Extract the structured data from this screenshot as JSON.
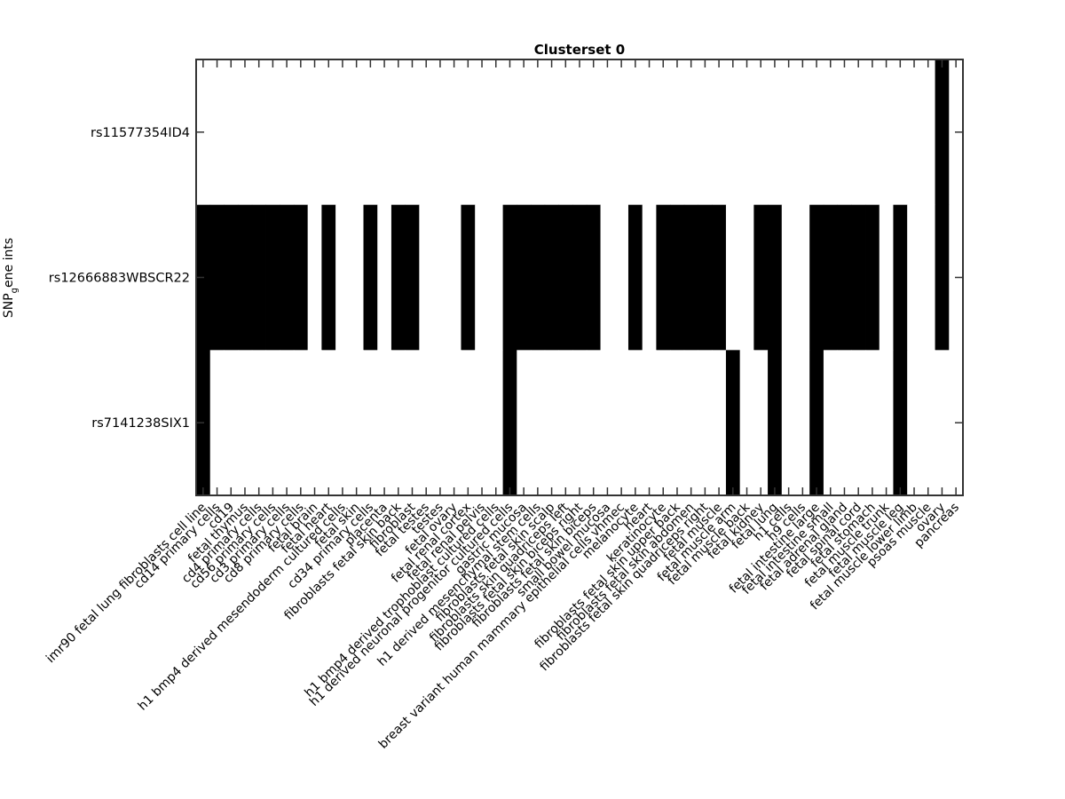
{
  "chart_data": {
    "type": "heatmap",
    "title": "Clusterset 0",
    "ylabel": {
      "main": "SNP",
      "subscript": "g",
      "rest": "ene ints"
    },
    "xlabel": "",
    "grid": false,
    "colors": {
      "on": "#000000",
      "off": "#ffffff",
      "frame": "#333333"
    },
    "rows": [
      "rs11577354ID4",
      "rs12666883WBSCR22",
      "rs7141238SIX1"
    ],
    "columns": [
      "imr90 fetal lung fibroblasts cell line",
      "cd14 primary cells",
      "cd19",
      "fetal thymus",
      "cd4 primary cells",
      "cd56 primary cells",
      "cd3 primary cells",
      "cd8 primary cells",
      "fetal brain",
      "fetal heart",
      "h1 bmp4 derived mesendoderm cultured cells",
      "fetal skin",
      "cd34 primary cells",
      "placenta",
      "fibroblasts fetal skin back",
      "fibroblast",
      "fetal testes",
      "testes",
      "fetal ovary",
      "fetal renal cortex",
      "fetal renal pelvis",
      "h1 bmp4 derived trophoblast cultured cells",
      "h1 derived neuronal progenitor cultured cells",
      "gastric mucosa",
      "h1 derived mesenchymal stem cells",
      "fibroblasts fetal skin scalp",
      "fibroblasts skin quadriceps left",
      "fibroblasts fetal skin biceps right",
      "fibroblasts fetal skin biceps",
      "small bowel mucosa",
      "breast variant human mammary epithelial cells vhmec",
      "melanocyte",
      "heart",
      "keratinocyte",
      "fibroblasts fetal skin upper back",
      "fibroblasts fetal skin abdomen",
      "fibroblasts fetal skin quadriceps right",
      "fetal muscle",
      "fetal muscle arm",
      "fetal muscle back",
      "fetal kidney",
      "fetal lung",
      "h1 cells",
      "h9 cells",
      "fetal intestine large",
      "fetal intestine small",
      "fetal adrenal gland",
      "fetal spinal cord",
      "fetal stomach",
      "fetal muscle trunk",
      "fetal muscle leg",
      "fetal muscle lower limb",
      "psoas muscle",
      "ovary",
      "pancreas"
    ],
    "values": [
      [
        0,
        0,
        0,
        0,
        0,
        0,
        0,
        0,
        0,
        0,
        0,
        0,
        0,
        0,
        0,
        0,
        0,
        0,
        0,
        0,
        0,
        0,
        0,
        0,
        0,
        0,
        0,
        0,
        0,
        0,
        0,
        0,
        0,
        0,
        0,
        0,
        0,
        0,
        0,
        0,
        0,
        0,
        0,
        0,
        0,
        0,
        0,
        0,
        0,
        0,
        0,
        0,
        0,
        1,
        0
      ],
      [
        1,
        1,
        1,
        1,
        1,
        1,
        1,
        1,
        0,
        1,
        0,
        0,
        1,
        0,
        1,
        1,
        0,
        0,
        0,
        1,
        0,
        0,
        1,
        1,
        1,
        1,
        1,
        1,
        1,
        0,
        0,
        1,
        0,
        1,
        1,
        1,
        1,
        1,
        0,
        0,
        1,
        1,
        0,
        0,
        1,
        1,
        1,
        1,
        1,
        0,
        1,
        0,
        0,
        1,
        0
      ],
      [
        1,
        0,
        0,
        0,
        0,
        0,
        0,
        0,
        0,
        0,
        0,
        0,
        0,
        0,
        0,
        0,
        0,
        0,
        0,
        0,
        0,
        0,
        1,
        0,
        0,
        0,
        0,
        0,
        0,
        0,
        0,
        0,
        0,
        0,
        0,
        0,
        0,
        0,
        1,
        0,
        0,
        1,
        0,
        0,
        1,
        0,
        0,
        0,
        0,
        0,
        1,
        0,
        0,
        0,
        0
      ]
    ]
  }
}
